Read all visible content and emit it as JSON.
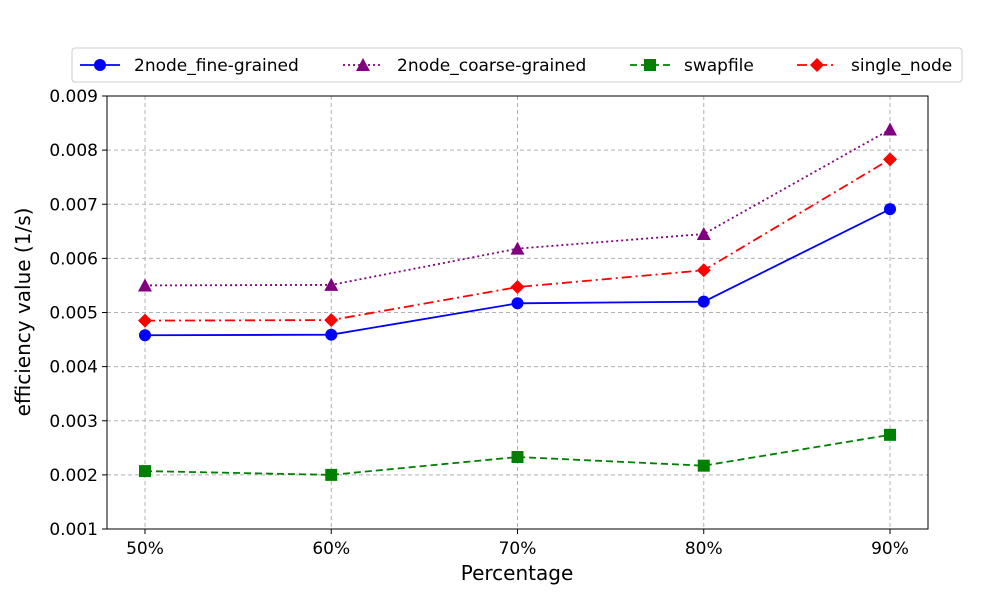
{
  "chart_data": {
    "type": "line",
    "title": "",
    "xlabel": "Percentage",
    "ylabel": "efficiency value (1/s)",
    "categories": [
      "50%",
      "60%",
      "70%",
      "80%",
      "90%"
    ],
    "ylim": [
      0.001,
      0.009
    ],
    "yticks": [
      "0.001",
      "0.002",
      "0.003",
      "0.004",
      "0.005",
      "0.006",
      "0.007",
      "0.008",
      "0.009"
    ],
    "grid": true,
    "legend_position": "top",
    "series": [
      {
        "name": "2node_fine-grained",
        "values": [
          0.00458,
          0.00459,
          0.00517,
          0.0052,
          0.00691
        ],
        "color": "#0000ff",
        "line_style": "solid",
        "marker": "circle"
      },
      {
        "name": "2node_coarse-grained",
        "values": [
          0.0055,
          0.00551,
          0.00618,
          0.00645,
          0.00838
        ],
        "color": "#800080",
        "line_style": "dotted",
        "marker": "triangle"
      },
      {
        "name": "swapfile",
        "values": [
          0.00207,
          0.002,
          0.00233,
          0.00217,
          0.00274
        ],
        "color": "#008000",
        "line_style": "dashed",
        "marker": "square"
      },
      {
        "name": "single_node",
        "values": [
          0.00485,
          0.00486,
          0.00547,
          0.00578,
          0.00783
        ],
        "color": "#ff0000",
        "line_style": "dashdot",
        "marker": "diamond"
      }
    ]
  }
}
